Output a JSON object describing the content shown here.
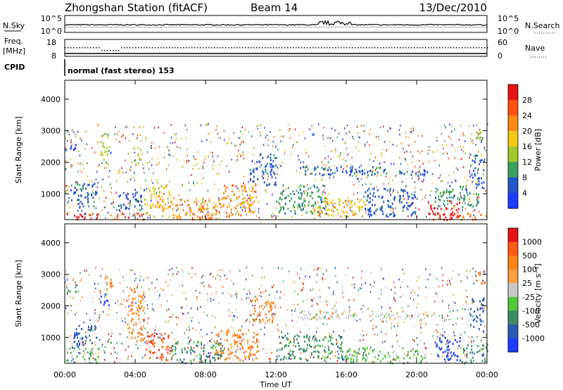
{
  "header": {
    "station": "Zhongshan Station (fitACF)",
    "beam": "Beam 14",
    "date": "13/Dec/2010"
  },
  "noise_panel": {
    "left_label": "N.Sky",
    "right_label": "N.Search",
    "left_ticks": [
      "10^5",
      "10^0"
    ],
    "right_ticks": [
      "10^5",
      "10^0"
    ]
  },
  "freq_panel": {
    "left_label_1": "Freq.",
    "left_label_2": "[MHz]",
    "right_label": "Nave",
    "left_ticks": [
      "18",
      "8"
    ],
    "right_ticks": [
      "60",
      "0"
    ]
  },
  "cpid": {
    "label": "CPID",
    "mode_text": "normal (fast stereo) 153"
  },
  "xaxis": {
    "label": "Time UT",
    "ticks": [
      "00:00",
      "04:00",
      "08:00",
      "12:00",
      "16:00",
      "20:00",
      "00:00"
    ]
  },
  "chart_data": [
    {
      "type": "heatmap",
      "name": "power",
      "xlabel": "Time UT",
      "ylabel": "Slant Range [km]",
      "x_ticks": [
        "00:00",
        "04:00",
        "08:00",
        "12:00",
        "16:00",
        "20:00",
        "00:00"
      ],
      "y_ticks": [
        1000,
        2000,
        3000,
        4000
      ],
      "ylim": [
        180,
        4600
      ],
      "colorbar": {
        "label": "Power [dB]",
        "levels": [
          "4",
          "8",
          "12",
          "16",
          "20",
          "24",
          "28"
        ],
        "colors": [
          "#1e3cff",
          "#2356c8",
          "#3aa060",
          "#a0c828",
          "#f2c814",
          "#ff8a14",
          "#ff5010",
          "#e61414"
        ]
      },
      "regions": [
        {
          "t0": 0.0,
          "t1": 2.0,
          "r0": 200,
          "r1": 420,
          "level": 7
        },
        {
          "t0": 0.3,
          "t1": 1.8,
          "r0": 600,
          "r1": 1400,
          "level": 1
        },
        {
          "t0": 0.0,
          "t1": 0.6,
          "r0": 2400,
          "r1": 2700,
          "level": 1
        },
        {
          "t0": 2.0,
          "t1": 2.5,
          "r0": 1900,
          "r1": 3000,
          "level": 3
        },
        {
          "t0": 2.5,
          "t1": 4.5,
          "r0": 200,
          "r1": 420,
          "level": 6
        },
        {
          "t0": 3.0,
          "t1": 4.5,
          "r0": 500,
          "r1": 1200,
          "level": 1
        },
        {
          "t0": 3.9,
          "t1": 4.3,
          "r0": 1800,
          "r1": 2600,
          "level": 3
        },
        {
          "t0": 4.5,
          "t1": 6.0,
          "r0": 300,
          "r1": 1300,
          "level": 4
        },
        {
          "t0": 6.0,
          "t1": 9.0,
          "r0": 200,
          "r1": 900,
          "level": 5
        },
        {
          "t0": 9.0,
          "t1": 11.0,
          "r0": 300,
          "r1": 1300,
          "level": 5
        },
        {
          "t0": 10.5,
          "t1": 12.0,
          "r0": 1300,
          "r1": 2300,
          "level": 1
        },
        {
          "t0": 12.0,
          "t1": 15.0,
          "r0": 400,
          "r1": 1300,
          "level": 2
        },
        {
          "t0": 14.0,
          "t1": 17.0,
          "r0": 300,
          "r1": 900,
          "level": 4
        },
        {
          "t0": 13.0,
          "t1": 18.0,
          "r0": 1600,
          "r1": 1900,
          "level": 1
        },
        {
          "t0": 17.0,
          "t1": 20.0,
          "r0": 300,
          "r1": 1200,
          "level": 1
        },
        {
          "t0": 18.0,
          "t1": 21.0,
          "r0": 1600,
          "r1": 1800,
          "level": 1
        },
        {
          "t0": 20.5,
          "t1": 22.5,
          "r0": 200,
          "r1": 800,
          "level": 7
        },
        {
          "t0": 21.0,
          "t1": 23.5,
          "r0": 600,
          "r1": 1300,
          "level": 2
        },
        {
          "t0": 22.5,
          "t1": 24.0,
          "r0": 200,
          "r1": 400,
          "level": 5
        },
        {
          "t0": 23.0,
          "t1": 23.8,
          "r0": 1200,
          "r1": 2300,
          "level": 1
        },
        {
          "t0": 23.3,
          "t1": 23.9,
          "r0": 2700,
          "r1": 3100,
          "level": 3
        }
      ]
    },
    {
      "type": "heatmap",
      "name": "velocity",
      "xlabel": "Time UT",
      "ylabel": "Slant Range [km]",
      "x_ticks": [
        "00:00",
        "04:00",
        "08:00",
        "12:00",
        "16:00",
        "20:00",
        "00:00"
      ],
      "y_ticks": [
        1000,
        2000,
        3000,
        4000
      ],
      "ylim": [
        180,
        4600
      ],
      "colorbar": {
        "label": "Velocity [m s⁻¹]",
        "levels": [
          "1000",
          "500",
          "100",
          "25",
          "-25",
          "-100",
          "-500",
          "-1000"
        ],
        "colors": [
          "#1e3cff",
          "#2a5ab4",
          "#3c8c64",
          "#50c83c",
          "#c8c8c8",
          "#ffa040",
          "#ff8214",
          "#ff5a14",
          "#e61414"
        ]
      },
      "regions": [
        {
          "t0": 0.0,
          "t1": 2.0,
          "r0": 200,
          "r1": 700,
          "level": 3
        },
        {
          "t0": 0.3,
          "t1": 1.8,
          "r0": 700,
          "r1": 1400,
          "level": 1
        },
        {
          "t0": 0.0,
          "t1": 0.6,
          "r0": 2400,
          "r1": 2700,
          "level": 2
        },
        {
          "t0": 2.0,
          "t1": 2.5,
          "r0": 2000,
          "r1": 2400,
          "level": 0
        },
        {
          "t0": 2.2,
          "t1": 2.7,
          "r0": 2500,
          "r1": 3000,
          "level": 6
        },
        {
          "t0": 3.5,
          "t1": 4.5,
          "r0": 900,
          "r1": 2600,
          "level": 6
        },
        {
          "t0": 4.5,
          "t1": 6.0,
          "r0": 300,
          "r1": 1200,
          "level": 7
        },
        {
          "t0": 6.0,
          "t1": 9.0,
          "r0": 200,
          "r1": 900,
          "level": 2
        },
        {
          "t0": 8.5,
          "t1": 11.0,
          "r0": 300,
          "r1": 1300,
          "level": 6
        },
        {
          "t0": 10.5,
          "t1": 12.0,
          "r0": 1500,
          "r1": 2300,
          "level": 6
        },
        {
          "t0": 12.0,
          "t1": 16.0,
          "r0": 300,
          "r1": 1100,
          "level": 2
        },
        {
          "t0": 13.0,
          "t1": 18.0,
          "r0": 1600,
          "r1": 1900,
          "level": 4
        },
        {
          "t0": 16.0,
          "t1": 20.5,
          "r0": 200,
          "r1": 700,
          "level": 3
        },
        {
          "t0": 18.0,
          "t1": 21.0,
          "r0": 1600,
          "r1": 1800,
          "level": 4
        },
        {
          "t0": 21.0,
          "t1": 22.5,
          "r0": 300,
          "r1": 1100,
          "level": 0
        },
        {
          "t0": 22.5,
          "t1": 24.0,
          "r0": 200,
          "r1": 800,
          "level": 2
        },
        {
          "t0": 23.0,
          "t1": 23.8,
          "r0": 1200,
          "r1": 2300,
          "level": 1
        },
        {
          "t0": 23.3,
          "t1": 23.9,
          "r0": 2700,
          "r1": 3100,
          "level": 6
        }
      ]
    }
  ]
}
